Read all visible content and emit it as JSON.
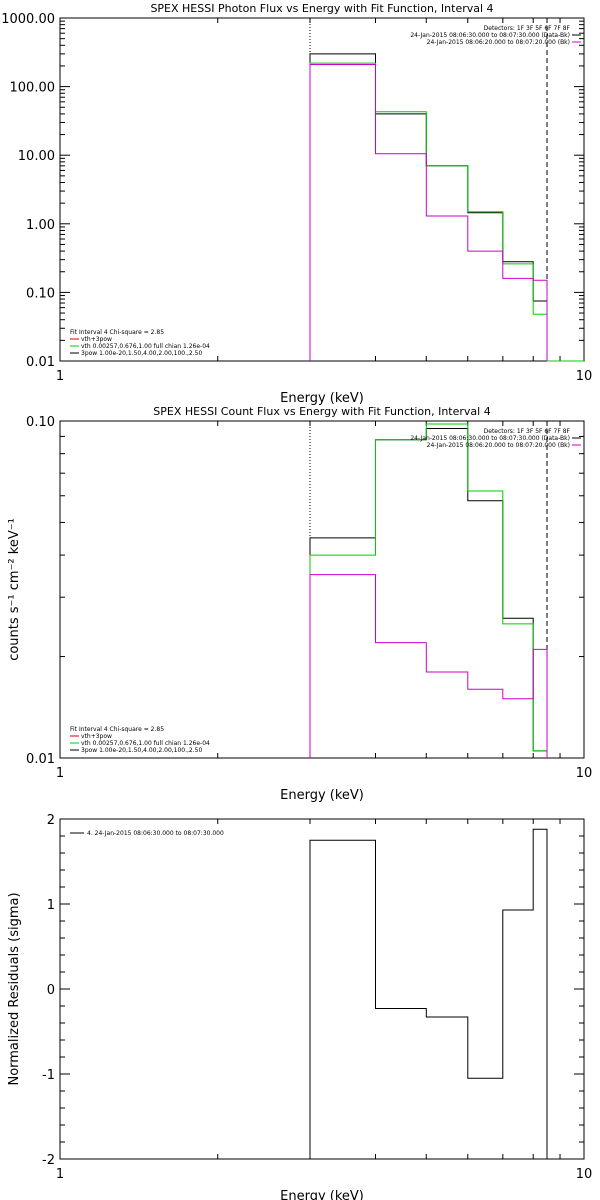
{
  "chart_data": [
    {
      "type": "line",
      "title": "SPEX HESSI Photon Flux vs Energy with Fit Function, Interval 4",
      "xlabel": "Energy (keV)",
      "ylabel": "",
      "xscale": "log",
      "yscale": "log",
      "xlim": [
        1,
        10
      ],
      "ylim": [
        0.01,
        1000
      ],
      "x_ticks": [
        {
          "value": 1,
          "label": "1"
        },
        {
          "value": 10,
          "label": "10"
        }
      ],
      "y_ticks": [
        {
          "value": 0.01,
          "label": "0.01"
        },
        {
          "value": 0.1,
          "label": "0.10"
        },
        {
          "value": 1,
          "label": "1.00"
        },
        {
          "value": 10,
          "label": "10.00"
        },
        {
          "value": 100,
          "label": "100.00"
        },
        {
          "value": 1000,
          "label": "1000.00"
        }
      ],
      "vlines": [
        {
          "x": 3.0,
          "style": "dotted"
        },
        {
          "x": 8.5,
          "style": "dashed"
        }
      ],
      "legend_topright": [
        {
          "text": "Detectors: 1F 3F 5F 6F 7F 8F",
          "color": "#000000"
        },
        {
          "text": "24-Jan-2015 08:06:30.000 to 08:07:30.000 (Data-Bk)",
          "color": "#000000"
        },
        {
          "text": "24-Jan-2015 08:06:20.000 to 08:07:20.000 (Bk)",
          "color": "#cc00cc"
        }
      ],
      "legend_bottomleft": [
        {
          "text": "Fit Interval 4   Chi-square = 2.85",
          "color": "#000000"
        },
        {
          "text": "vth+3pow",
          "color": "#dd0000"
        },
        {
          "text": "vth 0.00257,0.676,1.00  full chian 1.26e-04",
          "color": "#00cc00"
        },
        {
          "text": "3pow 1.00e-20,1.50,4.00,2.00,100.,2.50",
          "color": "#000000"
        }
      ],
      "series": [
        {
          "color": "#000000",
          "bins": [
            3.0,
            4.0,
            5.0,
            6.0,
            7.0,
            8.0,
            8.5
          ],
          "values": [
            300,
            40,
            7.0,
            1.45,
            0.28,
            0.075
          ]
        },
        {
          "color": "#00cc00",
          "bins": [
            3.0,
            4.0,
            5.0,
            6.0,
            7.0,
            8.0,
            8.5,
            10.0
          ],
          "values": [
            220,
            43,
            7.0,
            1.5,
            0.26,
            0.048,
            0.0075
          ]
        },
        {
          "color": "#cc00cc",
          "bins": [
            3.0,
            4.0,
            5.0,
            6.0,
            7.0,
            8.0,
            8.5
          ],
          "values": [
            210,
            10.5,
            1.3,
            0.4,
            0.16,
            0.15
          ]
        }
      ]
    },
    {
      "type": "line",
      "title": "SPEX HESSI Count Flux vs Energy with Fit Function, Interval 4",
      "xlabel": "Energy (keV)",
      "ylabel": "counts s⁻¹ cm⁻² keV⁻¹",
      "xscale": "log",
      "yscale": "log",
      "xlim": [
        1,
        10
      ],
      "ylim": [
        0.01,
        0.1
      ],
      "x_ticks": [
        {
          "value": 1,
          "label": "1"
        },
        {
          "value": 10,
          "label": "10"
        }
      ],
      "y_ticks": [
        {
          "value": 0.01,
          "label": "0.01"
        },
        {
          "value": 0.1,
          "label": "0.10"
        }
      ],
      "vlines": [
        {
          "x": 3.0,
          "style": "dotted"
        },
        {
          "x": 8.5,
          "style": "dashed"
        }
      ],
      "legend_topright": [
        {
          "text": "Detectors: 1F 3F 5F 6F 7F 8F",
          "color": "#000000"
        },
        {
          "text": "24-Jan-2015 08:06:30.000 to 08:07:30.000 (Data-Bk)",
          "color": "#000000"
        },
        {
          "text": "24-Jan-2015 08:06:20.000 to 08:07:20.000 (Bk)",
          "color": "#cc00cc"
        }
      ],
      "legend_bottomleft": [
        {
          "text": "Fit Interval 4   Chi-square = 2.85",
          "color": "#000000"
        },
        {
          "text": "vth+3pow",
          "color": "#dd0000"
        },
        {
          "text": "vth 0.00257,0.676,1.00  full chian 1.26e-04",
          "color": "#00cc00"
        },
        {
          "text": "3pow 1.00e-20,1.50,4.00,2.00,100.,2.50",
          "color": "#000000"
        }
      ],
      "series": [
        {
          "color": "#000000",
          "bins": [
            3.0,
            4.0,
            5.0,
            6.0,
            7.0,
            8.0,
            8.5
          ],
          "values": [
            0.045,
            0.088,
            0.095,
            0.058,
            0.026,
            0.0105
          ]
        },
        {
          "color": "#00cc00",
          "bins": [
            3.0,
            4.0,
            5.0,
            6.0,
            7.0,
            8.0,
            8.5
          ],
          "values": [
            0.04,
            0.088,
            0.098,
            0.062,
            0.025,
            0.0105
          ]
        },
        {
          "color": "#cc00cc",
          "bins": [
            3.0,
            4.0,
            5.0,
            6.0,
            7.0,
            8.0,
            8.5
          ],
          "values": [
            0.035,
            0.022,
            0.018,
            0.016,
            0.015,
            0.021
          ]
        }
      ]
    },
    {
      "type": "line",
      "title": "",
      "xlabel": "Energy (keV)",
      "ylabel": "Normalized Residuals (sigma)",
      "xscale": "log",
      "yscale": "linear",
      "xlim": [
        1,
        10
      ],
      "ylim": [
        -2,
        2
      ],
      "x_ticks": [
        {
          "value": 1,
          "label": "1"
        },
        {
          "value": 10,
          "label": "10"
        }
      ],
      "y_ticks": [
        {
          "value": -2,
          "label": "-2"
        },
        {
          "value": -1,
          "label": "-1"
        },
        {
          "value": 0,
          "label": "0"
        },
        {
          "value": 1,
          "label": "1"
        },
        {
          "value": 2,
          "label": "2"
        }
      ],
      "legend_topleft": [
        {
          "text": "4. 24-Jan-2015 08:06:30.000 to 08:07:30.000",
          "color": "#000000"
        }
      ],
      "series": [
        {
          "color": "#000000",
          "bins": [
            3.0,
            4.0,
            5.0,
            6.0,
            7.0,
            8.0,
            8.5
          ],
          "values": [
            1.75,
            -0.23,
            -0.33,
            -1.05,
            0.93,
            1.88
          ]
        }
      ]
    }
  ]
}
